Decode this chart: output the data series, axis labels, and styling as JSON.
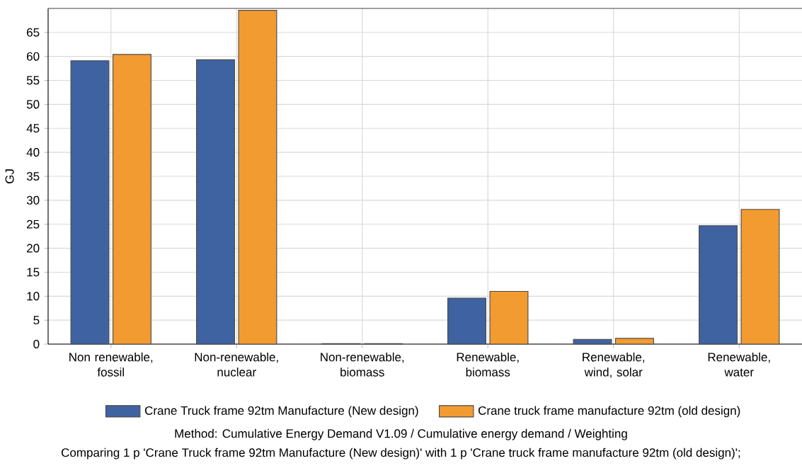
{
  "chart_data": {
    "type": "bar",
    "ylabel": "GJ",
    "categories": [
      "Non renewable, fossil",
      "Non-renewable, nuclear",
      "Non-renewable, biomass",
      "Renewable, biomass",
      "Renewable, wind, solar",
      "Renewable, water"
    ],
    "series": [
      {
        "name": "Crane Truck frame 92tm Manufacture (New design)",
        "color": "#3f62a0",
        "values": [
          59.1,
          59.3,
          0.1,
          9.6,
          1.0,
          24.7
        ]
      },
      {
        "name": "Crane truck frame manufacture 92tm (old design)",
        "color": "#f29b30",
        "values": [
          60.4,
          69.6,
          0.1,
          11.0,
          1.2,
          28.1
        ]
      }
    ],
    "ylim": [
      0,
      70
    ],
    "yticks": [
      0,
      5,
      10,
      15,
      20,
      25,
      30,
      35,
      40,
      45,
      50,
      55,
      60,
      65
    ],
    "grid": true,
    "legend": "bottom",
    "annotations": [
      "Method: Cumulative Energy Demand V1.09 / Cumulative energy demand / Weighting",
      "Comparing 1 p 'Crane Truck frame 92tm Manufacture (New design)' with 1 p 'Crane truck frame manufacture 92tm (old design)';"
    ]
  }
}
